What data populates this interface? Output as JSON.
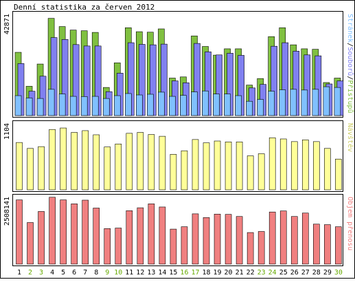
{
  "title": "Denní statistika za červen 2012",
  "colors": {
    "background": "#ffffff",
    "panel_bg": "#ffffff",
    "frame": "#000000",
    "hits": "#80c040",
    "files": "#8080f0",
    "pages": "#80c0ff",
    "visits": "#ffff99",
    "volume": "#f08080",
    "weekend_text": "#66aa00",
    "weekday_text": "#000000",
    "visits_label": "#cccc66",
    "volume_label": "#f08080"
  },
  "chart_data": [
    {
      "type": "bar",
      "id": "requests",
      "ylabel_max": "42871",
      "ymax": 42871,
      "legend": [
        {
          "text": "Stránek",
          "color": "#80c0ff"
        },
        {
          "text": "/",
          "color": "#000000"
        },
        {
          "text": "Souborů",
          "color": "#8080f0"
        },
        {
          "text": "/",
          "color": "#000000"
        },
        {
          "text": "Přístupů",
          "color": "#80c040"
        }
      ],
      "series": [
        {
          "name": "Přístupů",
          "values": [
            27000,
            12500,
            22000,
            41500,
            38000,
            36500,
            36200,
            35500,
            12000,
            22500,
            37500,
            35800,
            35600,
            37000,
            16000,
            16500,
            34000,
            29500,
            25800,
            28500,
            28500,
            13000,
            15800,
            33700,
            37500,
            30200,
            28500,
            28300,
            14100,
            16000
          ]
        },
        {
          "name": "Souborů",
          "values": [
            22200,
            10400,
            16800,
            33300,
            32500,
            30300,
            29700,
            29700,
            10200,
            18100,
            31100,
            30400,
            30200,
            30500,
            14800,
            14000,
            30800,
            27200,
            25900,
            26600,
            25700,
            11800,
            13300,
            29600,
            31100,
            27500,
            25900,
            25500,
            13500,
            14800
          ]
        },
        {
          "name": "Stránek",
          "values": [
            8500,
            7500,
            7300,
            11200,
            9200,
            8200,
            8100,
            8200,
            7300,
            8500,
            9400,
            8800,
            9100,
            10000,
            8200,
            8600,
            10100,
            10500,
            9200,
            9200,
            8500,
            6100,
            6900,
            10400,
            11000,
            11200,
            10900,
            11200,
            12300,
            12000
          ]
        }
      ]
    },
    {
      "type": "bar",
      "id": "visits",
      "ylabel_max": "1104",
      "ymax": 1104,
      "legend": [
        {
          "text": "Návštěv",
          "color": "#cccc66"
        }
      ],
      "series": [
        {
          "name": "Návštěv",
          "values": [
            800,
            700,
            730,
            1020,
            1045,
            970,
            1000,
            930,
            725,
            775,
            955,
            970,
            935,
            905,
            600,
            660,
            850,
            795,
            825,
            810,
            810,
            575,
            610,
            880,
            860,
            815,
            845,
            815,
            700,
            520
          ]
        }
      ]
    },
    {
      "type": "bar",
      "id": "volume",
      "ylabel_max": "2508141",
      "ymax": 2508141,
      "legend": [
        {
          "text": "Objem přenosu",
          "color": "#f08080"
        }
      ],
      "series": [
        {
          "name": "Objem přenosu",
          "values": [
            2440000,
            1580000,
            2000000,
            2540000,
            2440000,
            2290000,
            2430000,
            2130000,
            1350000,
            1370000,
            2030000,
            2140000,
            2290000,
            2170000,
            1330000,
            1420000,
            1910000,
            1770000,
            1900000,
            1890000,
            1810000,
            1200000,
            1240000,
            1980000,
            2020000,
            1810000,
            1940000,
            1520000,
            1500000,
            1420000
          ]
        }
      ]
    }
  ],
  "days": [
    "1",
    "2",
    "3",
    "4",
    "5",
    "6",
    "7",
    "8",
    "9",
    "10",
    "11",
    "12",
    "13",
    "14",
    "15",
    "16",
    "17",
    "18",
    "19",
    "20",
    "21",
    "22",
    "23",
    "24",
    "25",
    "26",
    "27",
    "28",
    "29",
    "30"
  ],
  "weekend_days": [
    2,
    3,
    9,
    10,
    16,
    17,
    23,
    24,
    30
  ]
}
